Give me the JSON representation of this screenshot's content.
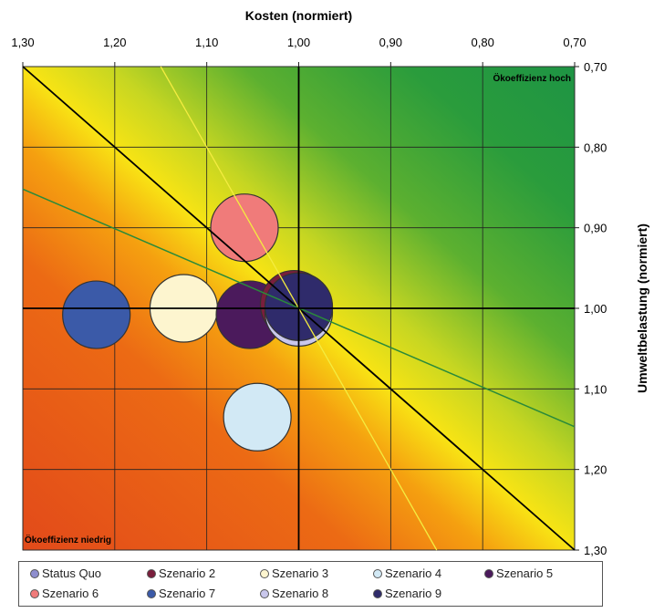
{
  "chart_data": {
    "type": "bubble",
    "xlabel": "Kosten (normiert)",
    "ylabel": "Umweltbelastung (normiert)",
    "xlim": [
      1.3,
      0.7
    ],
    "ylim": [
      0.7,
      1.3
    ],
    "x_ticks": [
      "1,30",
      "1,20",
      "1,10",
      "1,00",
      "0,90",
      "0,80",
      "0,70"
    ],
    "y_ticks": [
      "0,70",
      "0,80",
      "0,90",
      "1,00",
      "1,10",
      "1,20",
      "1,30"
    ],
    "grid": true,
    "annotations": {
      "high": "Ökoeffizienz hoch",
      "low": "Ökoeffizienz niedrig"
    },
    "legend_position": "bottom",
    "series": [
      {
        "name": "Status Quo",
        "x": 1.0,
        "y": 1.0,
        "color": "#8e8ece"
      },
      {
        "name": "Szenario 2",
        "x": 1.005,
        "y": 0.995,
        "color": "#7a1e3c"
      },
      {
        "name": "Szenario 3",
        "x": 1.125,
        "y": 1.0,
        "color": "#fdf5cf"
      },
      {
        "name": "Szenario 4",
        "x": 1.045,
        "y": 1.135,
        "color": "#d2e9f5"
      },
      {
        "name": "Szenario 5",
        "x": 1.053,
        "y": 1.008,
        "color": "#4b1a5c"
      },
      {
        "name": "Szenario 6",
        "x": 1.059,
        "y": 0.9,
        "color": "#f07b7a"
      },
      {
        "name": "Szenario 7",
        "x": 1.22,
        "y": 1.008,
        "color": "#3b5aa8"
      },
      {
        "name": "Szenario 8",
        "x": 1.0,
        "y": 1.005,
        "color": "#c9c7ec"
      },
      {
        "name": "Szenario 9",
        "x": 1.0,
        "y": 0.998,
        "color": "#2f2b6b"
      }
    ],
    "reference_lines": [
      {
        "name": "diagonal",
        "points": [
          [
            1.3,
            0.7
          ],
          [
            0.7,
            1.3
          ]
        ],
        "color": "#000000"
      },
      {
        "name": "green-line",
        "points": [
          [
            1.3,
            0.852
          ],
          [
            0.7,
            1.147
          ]
        ],
        "color": "#2a8a3a"
      },
      {
        "name": "yellow-line",
        "points": [
          [
            1.15,
            0.7
          ],
          [
            0.85,
            1.3
          ]
        ],
        "color": "#f4ec40"
      },
      {
        "name": "x-reference",
        "points": [
          [
            1.3,
            1.0
          ],
          [
            0.7,
            1.0
          ]
        ],
        "color": "#000000"
      },
      {
        "name": "y-reference",
        "points": [
          [
            1.0,
            0.7
          ],
          [
            1.0,
            1.3
          ]
        ],
        "color": "#000000"
      }
    ]
  }
}
